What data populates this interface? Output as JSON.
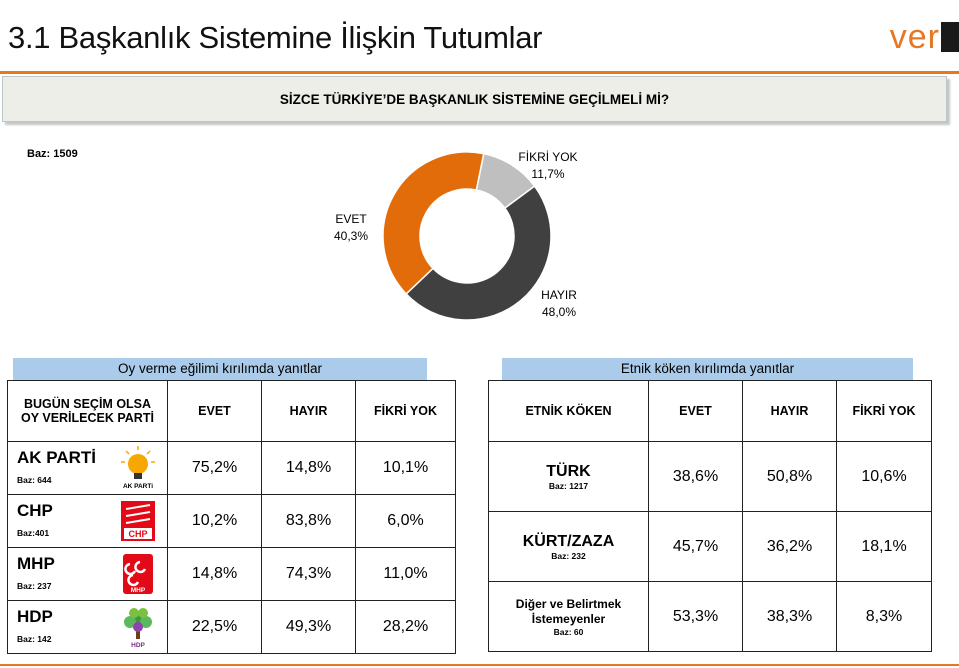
{
  "header": {
    "title": "3.1 Başkanlık Sistemine İlişkin Tutumlar",
    "logo_text": "ver"
  },
  "question": "SİZCE TÜRKİYE’DE BAŞKANLIK SİSTEMİNE GEÇİLMELİ Mİ?",
  "baz": "Baz: 1509",
  "chart_data": {
    "type": "pie",
    "donut": true,
    "slices": [
      {
        "label": "FİKRİ YOK",
        "value": 11.7,
        "value_text": "11,7%",
        "color": "#bfbfbf"
      },
      {
        "label": "HAYIR",
        "value": 48.0,
        "value_text": "48,0%",
        "color": "#404040"
      },
      {
        "label": "EVET",
        "value": 40.3,
        "value_text": "40,3%",
        "color": "#e36c0a"
      }
    ]
  },
  "party_table": {
    "heading": "Oy verme eğilimi kırılımda yanıtlar",
    "col1": "BUGÜN SEÇİM OLSA OY VERİLECEK PARTİ",
    "cols": [
      "EVET",
      "HAYIR",
      "FİKRİ YOK"
    ],
    "rows": [
      {
        "name": "AK PARTİ",
        "baz": "Baz: 644",
        "logo": "ak-parti-logo",
        "logo_text": "AK PARTi",
        "values": [
          "75,2%",
          "14,8%",
          "10,1%"
        ]
      },
      {
        "name": "CHP",
        "baz": "Baz:401",
        "logo": "chp-logo",
        "logo_text": "CHP",
        "values": [
          "10,2%",
          "83,8%",
          "6,0%"
        ]
      },
      {
        "name": "MHP",
        "baz": "Baz: 237",
        "logo": "mhp-logo",
        "logo_text": "MHP",
        "values": [
          "14,8%",
          "74,3%",
          "11,0%"
        ]
      },
      {
        "name": "HDP",
        "baz": "Baz: 142",
        "logo": "hdp-logo",
        "logo_text": "HDP",
        "values": [
          "22,5%",
          "49,3%",
          "28,2%"
        ]
      }
    ]
  },
  "ethnic_table": {
    "heading": "Etnik köken  kırılımda yanıtlar",
    "col1": "ETNİK KÖKEN",
    "cols": [
      "EVET",
      "HAYIR",
      "FİKRİ YOK"
    ],
    "rows": [
      {
        "name": "TÜRK",
        "baz": "Baz: 1217",
        "values": [
          "38,6%",
          "50,8%",
          "10,6%"
        ]
      },
      {
        "name": "KÜRT/ZAZA",
        "baz": "Baz: 232",
        "values": [
          "45,7%",
          "36,2%",
          "18,1%"
        ]
      },
      {
        "name": "Diğer ve Belirtmek İstemeyenler",
        "baz": "Baz: 60",
        "values": [
          "53,3%",
          "38,3%",
          "8,3%"
        ]
      }
    ]
  },
  "colors": {
    "accent": "#e87722",
    "header_blue": "#aacbea"
  }
}
